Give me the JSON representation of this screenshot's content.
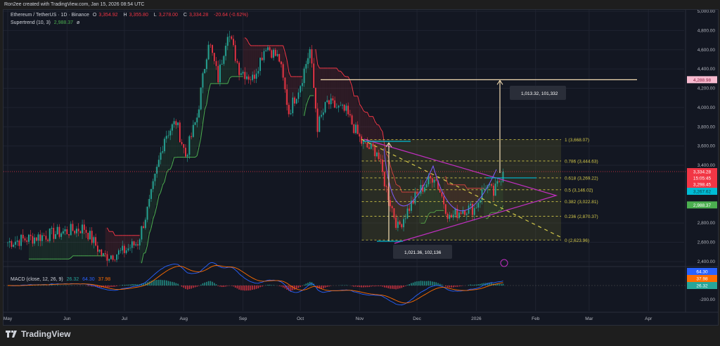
{
  "credit": "Ron2ee created with TradingView.com, Jan 15, 2026 08:54 UTC",
  "legend": {
    "symbol": "Ethereum / TetherUS · 1D · Binance",
    "open_label": "O",
    "open": "3,354.92",
    "high_label": "H",
    "high": "3,355.80",
    "low_label": "L",
    "low": "3,278.00",
    "close_label": "C",
    "close": "3,334.28",
    "change": "-20.64 (-0.62%)",
    "supertrend_name": "Supertrend (10, 3)",
    "supertrend_value": "2,988.37",
    "supertrend_extra": "ø"
  },
  "macd_legend": {
    "name": "MACD (close, 12, 26, 9)",
    "v1": "26.32",
    "v2": "64.30",
    "v3": "37.98"
  },
  "price_axis": [
    "5,000.00",
    "4,800.00",
    "4,600.00",
    "4,400.00",
    "4,200.00",
    "4,000.00",
    "3,800.00",
    "3,600.00",
    "3,400.00",
    "2,800.00",
    "2,600.00",
    "2,400.00"
  ],
  "macd_axis": [
    "-200.00"
  ],
  "axis_badges": {
    "target": "4,288.98",
    "last_price": "3,334.28",
    "countdown": "15:05:45",
    "prev": "3,298.45",
    "cyan_level": "3,267.62",
    "supertrend": "2,988.37",
    "macd": "64.30",
    "signal": "37.98",
    "hist": "26.32"
  },
  "time_axis": [
    "May",
    "Jun",
    "Jul",
    "Aug",
    "Sep",
    "Oct",
    "Nov",
    "Dec",
    "2026",
    "Feb",
    "Mar",
    "Apr"
  ],
  "fib_levels": [
    {
      "ratio": 1,
      "price": 3668.07,
      "label": "1 (3,668.07)"
    },
    {
      "ratio": 0.786,
      "price": 3444.63,
      "label": "0.786 (3,444.63)"
    },
    {
      "ratio": 0.618,
      "price": 3269.22,
      "label": "0.618 (3,269.22)"
    },
    {
      "ratio": 0.5,
      "price": 3146.02,
      "label": "0.5 (3,146.02)"
    },
    {
      "ratio": 0.382,
      "price": 3022.81,
      "label": "0.382 (3,022.81)"
    },
    {
      "ratio": 0.236,
      "price": 2870.37,
      "label": "0.236 (2,870.37)"
    },
    {
      "ratio": 0,
      "price": 2623.96,
      "label": "0 (2,623.96)"
    }
  ],
  "measures": {
    "upper": "1,013.32, 101,332",
    "lower": "1,021.36, 102,136"
  },
  "footer": {
    "brand": "TradingView"
  },
  "colors": {
    "up": "#26a69a",
    "down": "#f23645",
    "supertrend_up": "#4caf50",
    "supertrend_down": "#f23645",
    "fib": "#d4c94a",
    "triangle": "#c22fc2",
    "macd": "#2962ff",
    "signal": "#ff6d00",
    "cup": "#7b5cff"
  },
  "chart_data": {
    "type": "candlestick",
    "ylim": [
      2400,
      5000
    ],
    "close_anchors": [
      [
        "2025-05-01",
        2600
      ],
      [
        "2025-05-15",
        2650
      ],
      [
        "2025-05-28",
        2700
      ],
      [
        "2025-06-10",
        2750
      ],
      [
        "2025-06-20",
        2450
      ],
      [
        "2025-06-30",
        2500
      ],
      [
        "2025-07-08",
        2600
      ],
      [
        "2025-07-14",
        3000
      ],
      [
        "2025-07-22",
        3700
      ],
      [
        "2025-07-28",
        3850
      ],
      [
        "2025-08-02",
        3500
      ],
      [
        "2025-08-08",
        3900
      ],
      [
        "2025-08-14",
        4700
      ],
      [
        "2025-08-19",
        4300
      ],
      [
        "2025-08-24",
        4800
      ],
      [
        "2025-08-30",
        4400
      ],
      [
        "2025-09-06",
        4300
      ],
      [
        "2025-09-13",
        4650
      ],
      [
        "2025-09-20",
        4500
      ],
      [
        "2025-09-25",
        3950
      ],
      [
        "2025-10-01",
        4250
      ],
      [
        "2025-10-06",
        4600
      ],
      [
        "2025-10-10",
        3800
      ],
      [
        "2025-10-15",
        4050
      ],
      [
        "2025-10-25",
        3950
      ],
      [
        "2025-11-03",
        3600
      ],
      [
        "2025-11-10",
        3550
      ],
      [
        "2025-11-15",
        3150
      ],
      [
        "2025-11-21",
        2750
      ],
      [
        "2025-11-28",
        3000
      ],
      [
        "2025-12-03",
        3150
      ],
      [
        "2025-12-10",
        3300
      ],
      [
        "2025-12-18",
        2850
      ],
      [
        "2025-12-25",
        2950
      ],
      [
        "2025-12-31",
        2950
      ],
      [
        "2026-01-06",
        3200
      ],
      [
        "2026-01-10",
        3100
      ],
      [
        "2026-01-15",
        3334.28
      ]
    ],
    "last_price": 3334.28,
    "target_price": 4288.98
  }
}
